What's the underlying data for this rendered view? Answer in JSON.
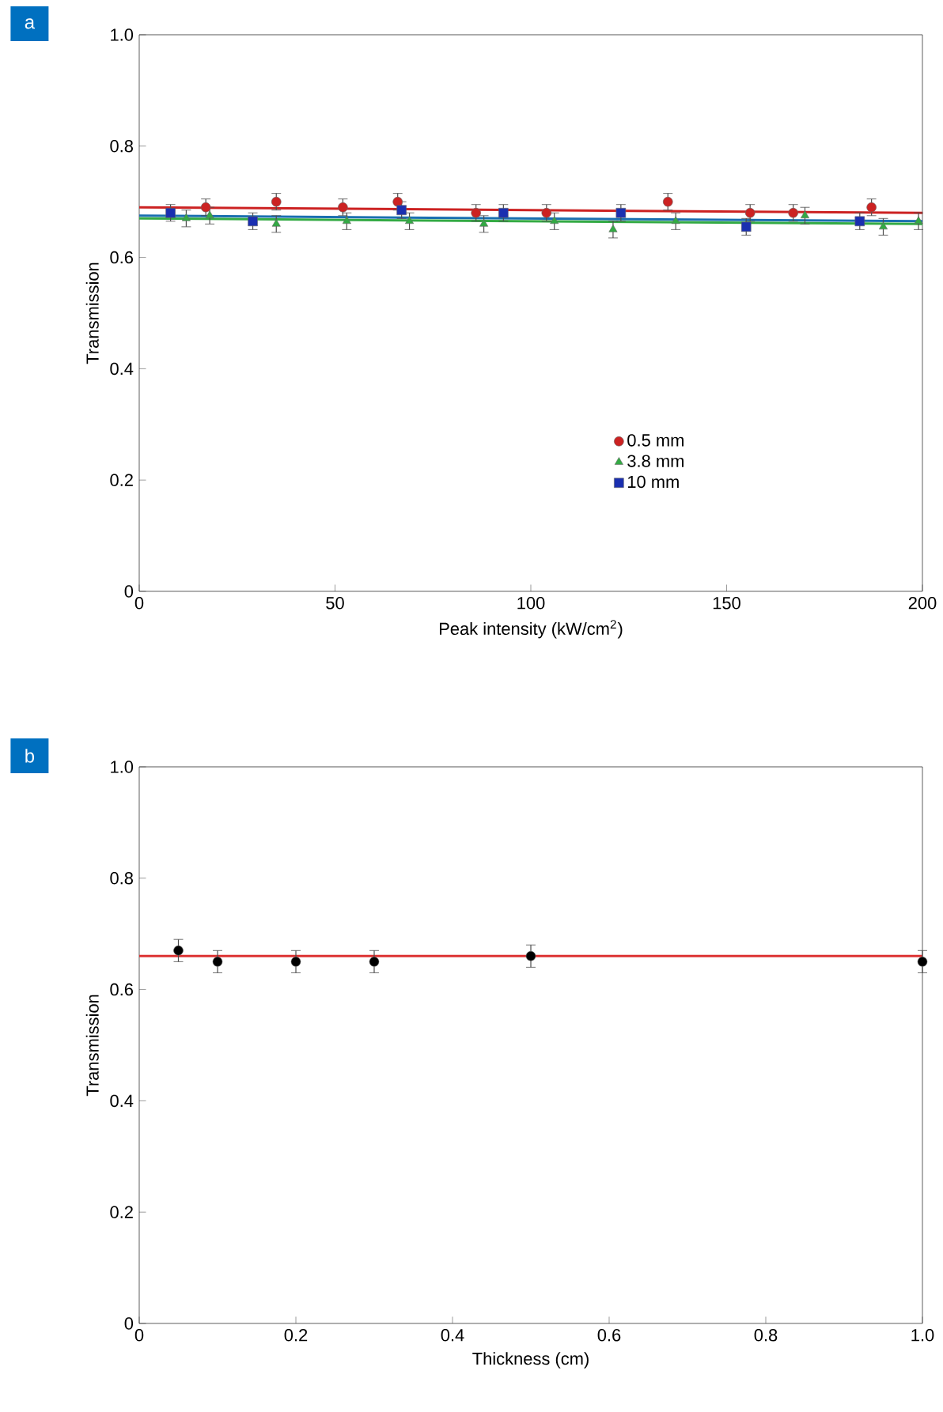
{
  "chart_data": [
    {
      "type": "scatter",
      "xlabel": "Peak intensity (kW/cm$^{2}$)",
      "ylabel": "Transmission",
      "xlim": [
        0,
        200
      ],
      "ylim": [
        0,
        1
      ],
      "xticks": [
        0,
        50,
        100,
        150,
        200
      ],
      "yticks": [
        0,
        0.2,
        0.4,
        0.6,
        0.8,
        {
          "value": 1,
          "label": "1.0"
        }
      ],
      "legend": "bottom right",
      "annotations": [
        "a"
      ],
      "series": [
        {
          "name": "0.5 mm",
          "color": "#cc2222",
          "marker": "circle",
          "x": [
            17,
            35,
            52,
            66,
            86,
            104,
            135,
            156,
            167,
            187
          ],
          "values": [
            0.69,
            0.7,
            0.69,
            0.7,
            0.68,
            0.68,
            0.7,
            0.68,
            0.68,
            0.69
          ],
          "errors": [
            0.015,
            0.015,
            0.015,
            0.015,
            0.015,
            0.015,
            0.015,
            0.015,
            0.015,
            0.015
          ]
        },
        {
          "name": "3.8 mm",
          "color": "#33aa44",
          "marker": "triangle",
          "x": [
            12,
            18,
            35,
            53,
            69,
            88,
            106,
            121,
            137,
            170,
            190,
            199
          ],
          "values": [
            0.67,
            0.675,
            0.66,
            0.665,
            0.665,
            0.66,
            0.665,
            0.65,
            0.665,
            0.675,
            0.655,
            0.665
          ],
          "errors": [
            0.015,
            0.015,
            0.015,
            0.015,
            0.015,
            0.015,
            0.015,
            0.015,
            0.015,
            0.015,
            0.015,
            0.015
          ]
        },
        {
          "name": "10 mm",
          "color": "#1a2fb0",
          "marker": "square",
          "x": [
            8,
            29,
            67,
            93,
            123,
            155,
            184
          ],
          "values": [
            0.68,
            0.665,
            0.685,
            0.68,
            0.68,
            0.655,
            0.665
          ],
          "errors": [
            0.015,
            0.015,
            0.015,
            0.015,
            0.015,
            0.015,
            0.015
          ]
        },
        {
          "type": "line",
          "color": "#cc2222",
          "x": [
            0,
            200
          ],
          "values": [
            0.69,
            0.68
          ]
        },
        {
          "type": "line",
          "color": "#1a6fb0",
          "x": [
            0,
            200
          ],
          "values": [
            0.675,
            0.665
          ]
        },
        {
          "type": "line",
          "color": "#33aa44",
          "x": [
            0,
            200
          ],
          "values": [
            0.67,
            0.66
          ]
        }
      ]
    },
    {
      "type": "scatter",
      "xlabel": "Thickness (cm)",
      "ylabel": "Transmission",
      "xlim": [
        0,
        1
      ],
      "ylim": [
        0,
        1
      ],
      "xticks": [
        0,
        0.2,
        0.4,
        0.6,
        0.8,
        {
          "value": 1,
          "label": "1.0"
        }
      ],
      "yticks": [
        0,
        0.2,
        0.4,
        0.6,
        0.8,
        {
          "value": 1,
          "label": "1.0"
        }
      ],
      "annotations": [
        "b"
      ],
      "series": [
        {
          "type": "line",
          "color": "#dd3333",
          "x": [
            0,
            1
          ],
          "values": [
            0.66,
            0.66
          ]
        },
        {
          "color": "#000000",
          "marker": "circle",
          "x": [
            0.05,
            0.1,
            0.2,
            0.3,
            0.5,
            1.0
          ],
          "values": [
            0.67,
            0.65,
            0.65,
            0.65,
            0.66,
            0.65
          ],
          "errors": [
            0.02,
            0.02,
            0.02,
            0.02,
            0.02,
            0.02
          ]
        }
      ]
    }
  ]
}
